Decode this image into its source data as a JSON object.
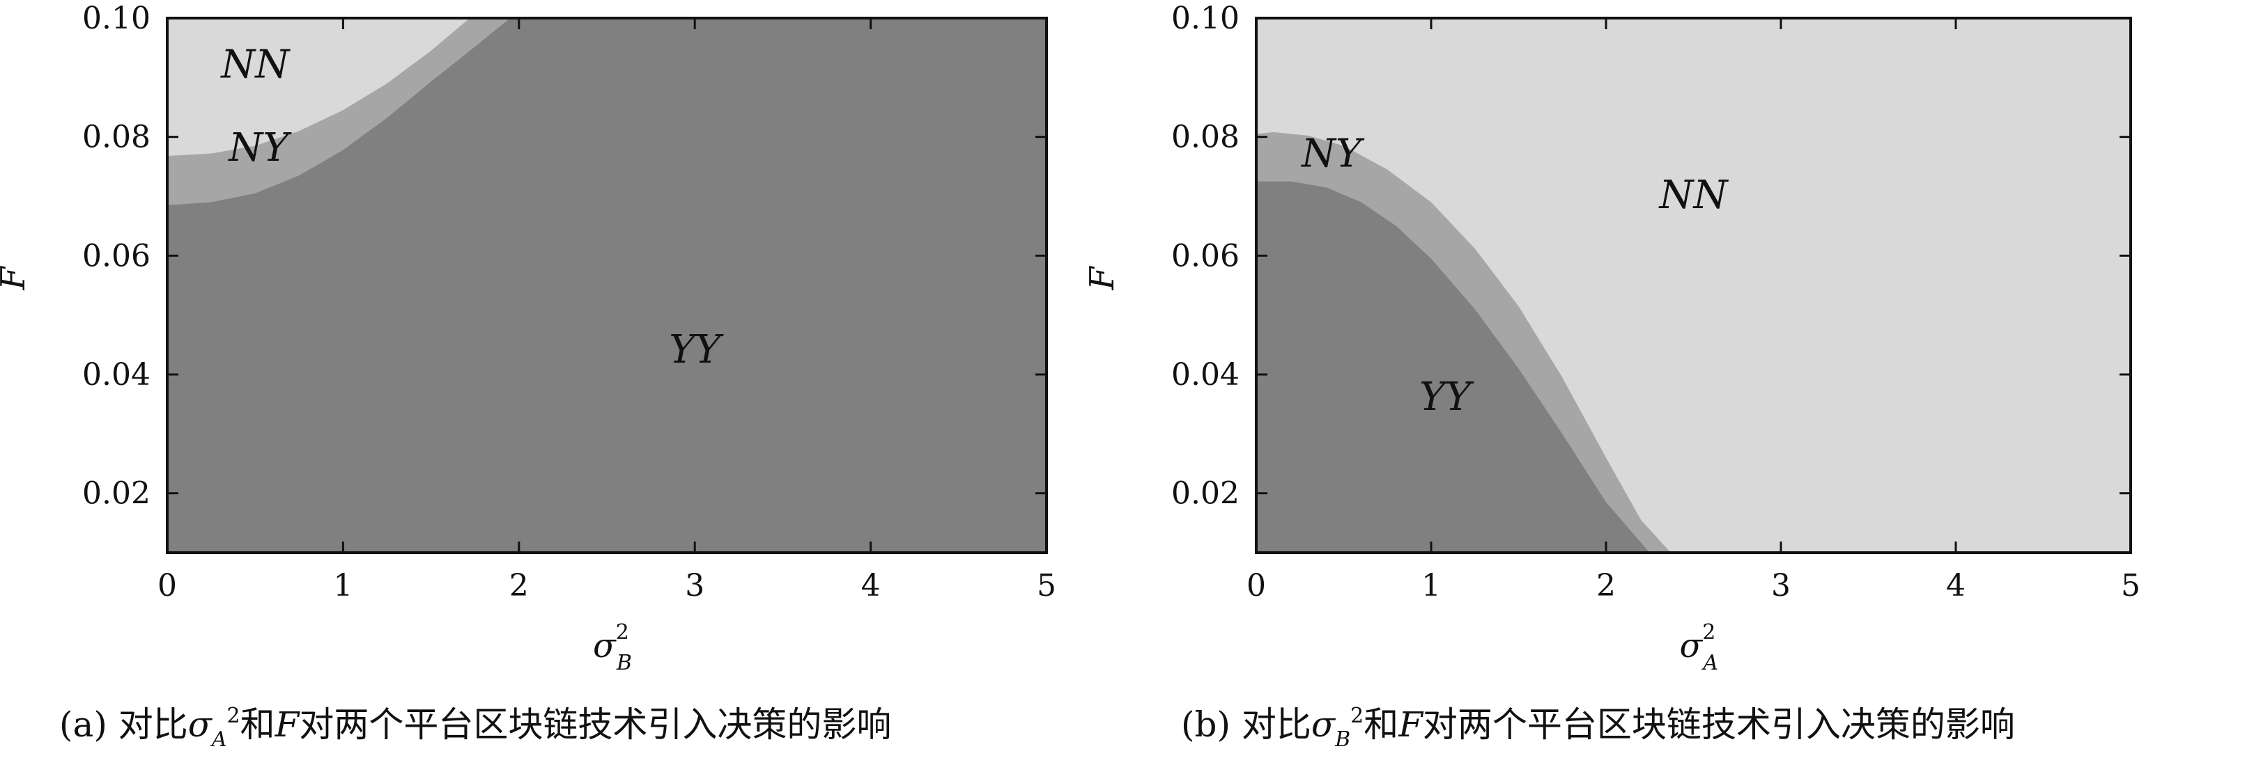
{
  "colors": {
    "NN": "#d9d9d9",
    "NY": "#a6a6a6",
    "YY": "#808080"
  },
  "chart_data": [
    {
      "type": "region",
      "panel": "a",
      "caption": {
        "prefix": "(a) 对比",
        "symbol": "σ",
        "symbol_sub": "A",
        "symbol_sup": "2",
        "mid": "和",
        "var": "F",
        "suffix": "对两个平台区块链技术引入决策的影响"
      },
      "xlabel": {
        "symbol": "σ",
        "sup": "2",
        "sub": "B"
      },
      "ylabel": "F",
      "xlim": [
        0,
        5
      ],
      "ylim": [
        0.01,
        0.1
      ],
      "xticks": [
        "0",
        "1",
        "2",
        "3",
        "4",
        "5"
      ],
      "yticks": [
        "0.02",
        "0.04",
        "0.06",
        "0.08",
        "0.10"
      ],
      "background_region": "YY",
      "regions": [
        {
          "name": "NY",
          "text": "NY",
          "label_pos": [
            0.52,
            0.076
          ],
          "bound": "below",
          "boundary": [
            [
              0,
              0.0685
            ],
            [
              0.25,
              0.069
            ],
            [
              0.5,
              0.0705
            ],
            [
              0.75,
              0.0735
            ],
            [
              1.0,
              0.0778
            ],
            [
              1.25,
              0.0832
            ],
            [
              1.5,
              0.0893
            ],
            [
              1.75,
              0.0952
            ],
            [
              1.95,
              0.1
            ]
          ]
        },
        {
          "name": "NN",
          "text": "NN",
          "label_pos": [
            0.5,
            0.09
          ],
          "bound": "below",
          "boundary": [
            [
              0,
              0.0768
            ],
            [
              0.25,
              0.0772
            ],
            [
              0.5,
              0.0785
            ],
            [
              0.75,
              0.081
            ],
            [
              1.0,
              0.0845
            ],
            [
              1.25,
              0.089
            ],
            [
              1.5,
              0.0945
            ],
            [
              1.72,
              0.1
            ]
          ]
        },
        {
          "name": "YY",
          "text": "YY",
          "label_pos": [
            3.0,
            0.042
          ]
        }
      ]
    },
    {
      "type": "region",
      "panel": "b",
      "caption": {
        "prefix": "(b) 对比",
        "symbol": "σ",
        "symbol_sub": "B",
        "symbol_sup": "2",
        "mid": "和",
        "var": "F",
        "suffix": "对两个平台区块链技术引入决策的影响"
      },
      "xlabel": {
        "symbol": "σ",
        "sup": "2",
        "sub": "A"
      },
      "ylabel": "F",
      "xlim": [
        0,
        5
      ],
      "ylim": [
        0.01,
        0.1
      ],
      "xticks": [
        "0",
        "1",
        "2",
        "3",
        "4",
        "5"
      ],
      "yticks": [
        "0.02",
        "0.04",
        "0.06",
        "0.08",
        "0.10"
      ],
      "background_region": "NN",
      "regions": [
        {
          "name": "NY",
          "text": "NY",
          "label_pos": [
            0.43,
            0.075
          ],
          "bound": "above",
          "boundary": [
            [
              0,
              0.0805
            ],
            [
              0.1,
              0.0808
            ],
            [
              0.3,
              0.0802
            ],
            [
              0.5,
              0.0785
            ],
            [
              0.75,
              0.0745
            ],
            [
              1.0,
              0.069
            ],
            [
              1.25,
              0.0612
            ],
            [
              1.5,
              0.0515
            ],
            [
              1.75,
              0.0395
            ],
            [
              2.0,
              0.026
            ],
            [
              2.2,
              0.0155
            ],
            [
              2.37,
              0.01
            ]
          ]
        },
        {
          "name": "YY",
          "text": "YY",
          "label_pos": [
            1.08,
            0.034
          ],
          "bound": "above",
          "boundary": [
            [
              0,
              0.0725
            ],
            [
              0.2,
              0.0725
            ],
            [
              0.4,
              0.0715
            ],
            [
              0.6,
              0.069
            ],
            [
              0.8,
              0.065
            ],
            [
              1.0,
              0.0595
            ],
            [
              1.25,
              0.051
            ],
            [
              1.5,
              0.041
            ],
            [
              1.75,
              0.03
            ],
            [
              2.0,
              0.0185
            ],
            [
              2.25,
              0.01
            ]
          ]
        },
        {
          "name": "NN",
          "text": "NN",
          "label_pos": [
            2.5,
            0.068
          ]
        }
      ]
    }
  ]
}
